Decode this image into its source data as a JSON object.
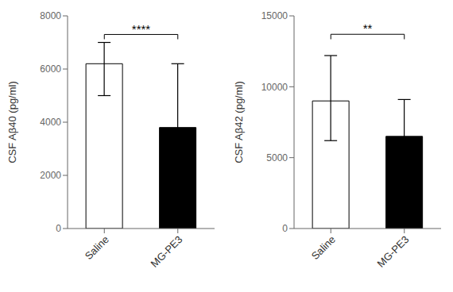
{
  "chart_data": [
    {
      "type": "bar",
      "ylabel": "CSF Aβ40 (pg/ml)",
      "categories": [
        "Saline",
        "MG-PE3"
      ],
      "values": [
        6200,
        3800
      ],
      "errors_upper": [
        800,
        2400
      ],
      "errors_lower": [
        1200,
        2400
      ],
      "colors": [
        "white",
        "black"
      ],
      "ylim": [
        0,
        8000
      ],
      "yticks": [
        0,
        2000,
        4000,
        6000,
        8000
      ],
      "grid": false,
      "significance": {
        "label": "****",
        "bar_y": 7300,
        "text_y": 7350,
        "drop": 180
      }
    },
    {
      "type": "bar",
      "ylabel": "CSF Aβ42 (pg/ml)",
      "categories": [
        "Saline",
        "MG-PE3"
      ],
      "values": [
        9000,
        6500
      ],
      "errors_upper": [
        3200,
        2600
      ],
      "errors_lower": [
        2800,
        2500
      ],
      "colors": [
        "white",
        "black"
      ],
      "ylim": [
        0,
        15000
      ],
      "yticks": [
        0,
        5000,
        10000,
        15000
      ],
      "grid": false,
      "significance": {
        "label": "**",
        "bar_y": 13700,
        "text_y": 13800,
        "drop": 350
      }
    }
  ]
}
